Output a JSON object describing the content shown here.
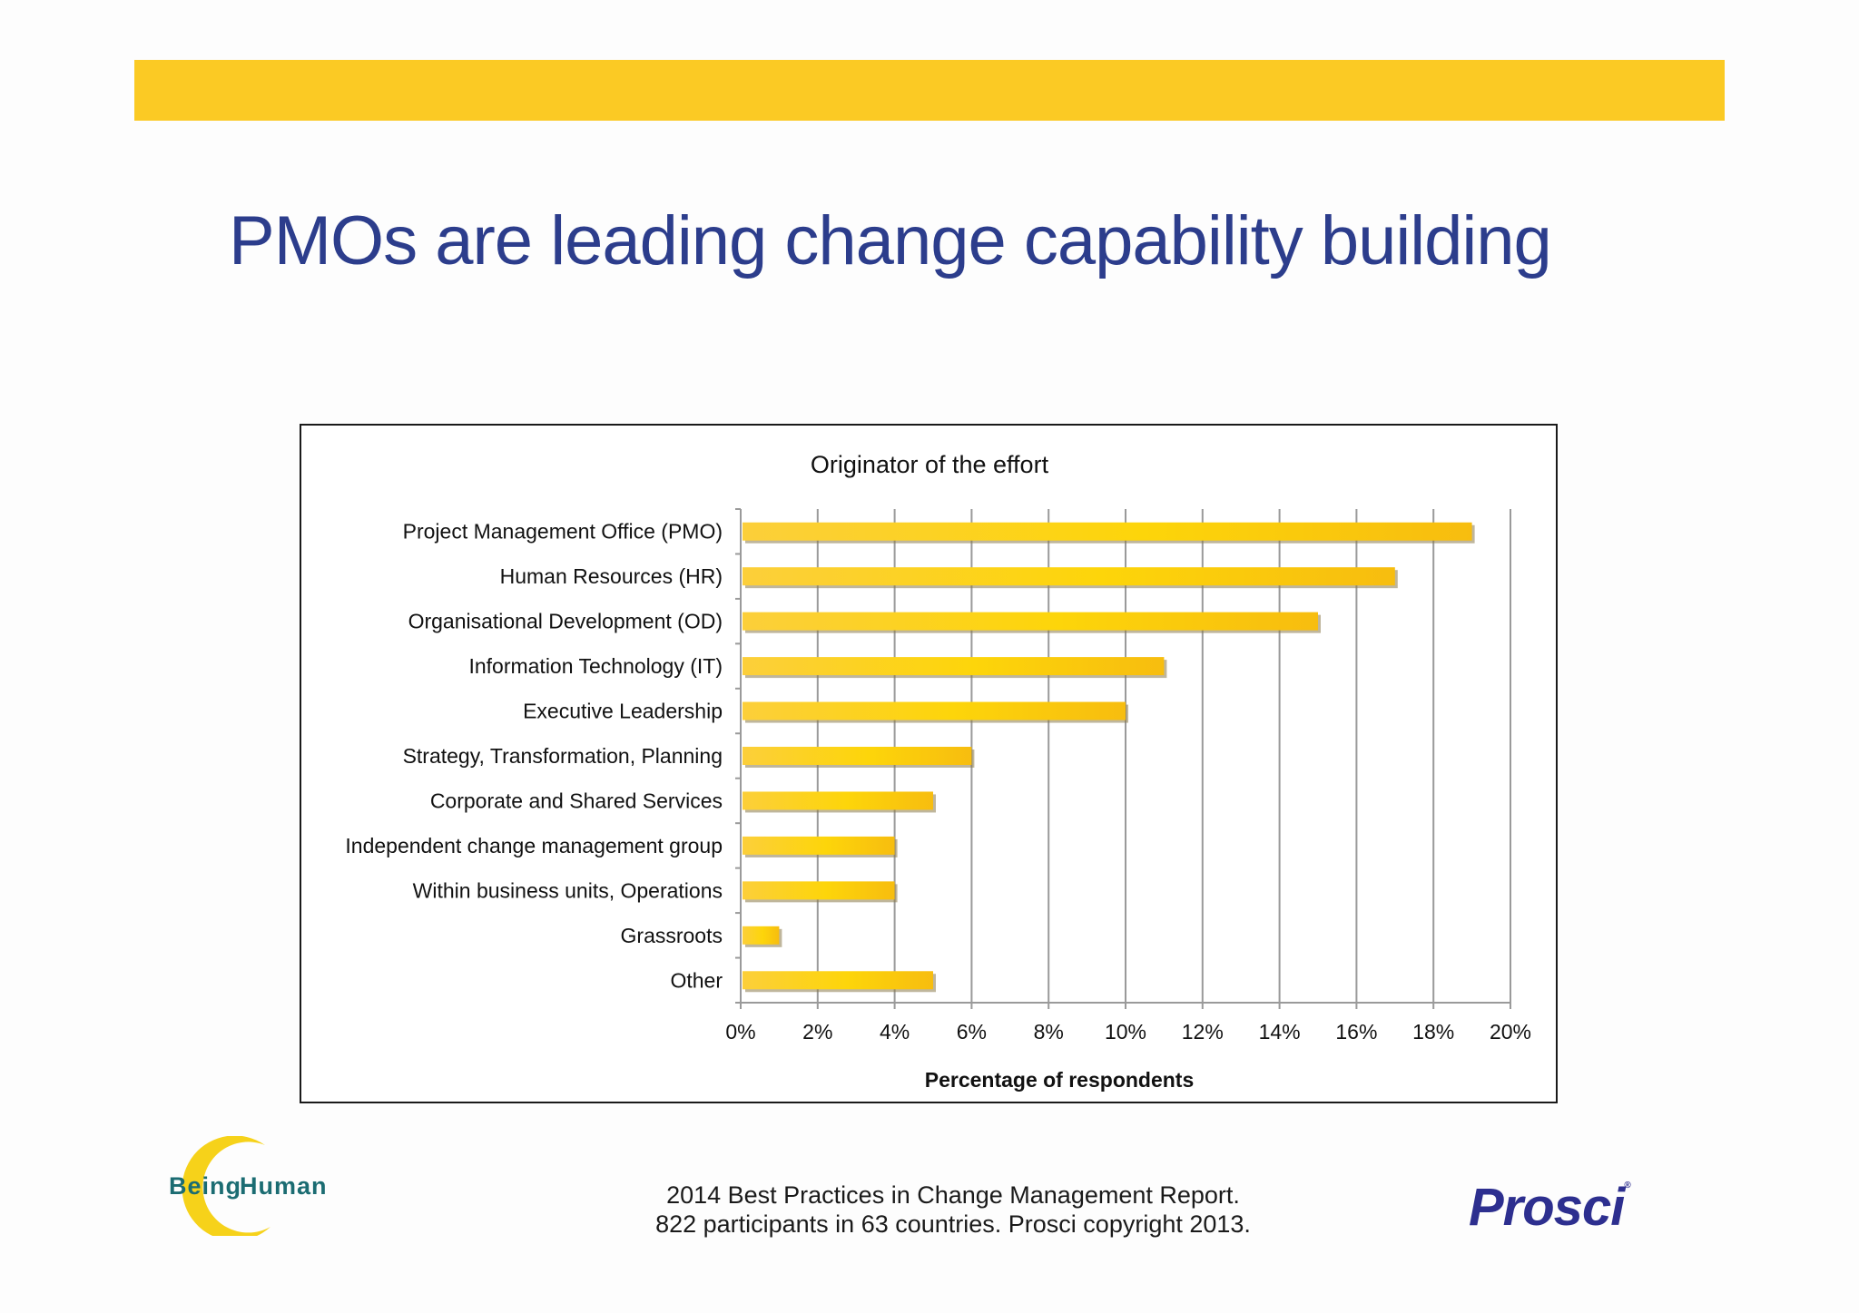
{
  "slide": {
    "title": "PMOs are leading change capability building",
    "footer_line1": "2014 Best Practices in Change Management Report.",
    "footer_line2": "822 participants in 63 countries.  Prosci copyright 2013.",
    "logo_left_word1": "Being",
    "logo_left_word2": "Human",
    "logo_right": "Prosci",
    "logo_right_mark": "®",
    "band_color": "#fbca24",
    "title_color": "#2c3d8c"
  },
  "chart_data": {
    "type": "bar",
    "orientation": "horizontal",
    "title": "Originator of the effort",
    "xlabel": "Percentage of respondents",
    "ylabel": "",
    "categories": [
      "Project Management Office (PMO)",
      "Human Resources (HR)",
      "Organisational Development (OD)",
      "Information Technology (IT)",
      "Executive Leadership",
      "Strategy, Transformation, Planning",
      "Corporate and Shared Services",
      "Independent change management group",
      "Within business units, Operations",
      "Grassroots",
      "Other"
    ],
    "values": [
      19,
      17,
      15,
      11,
      10,
      6,
      5,
      4,
      4,
      1,
      5
    ],
    "xlim": [
      0,
      20
    ],
    "x_ticks": [
      0,
      2,
      4,
      6,
      8,
      10,
      12,
      14,
      16,
      18,
      20
    ],
    "x_tick_labels": [
      "0%",
      "2%",
      "4%",
      "6%",
      "8%",
      "10%",
      "12%",
      "14%",
      "16%",
      "18%",
      "20%"
    ],
    "grid": true,
    "bar_color": "#fcc624"
  }
}
